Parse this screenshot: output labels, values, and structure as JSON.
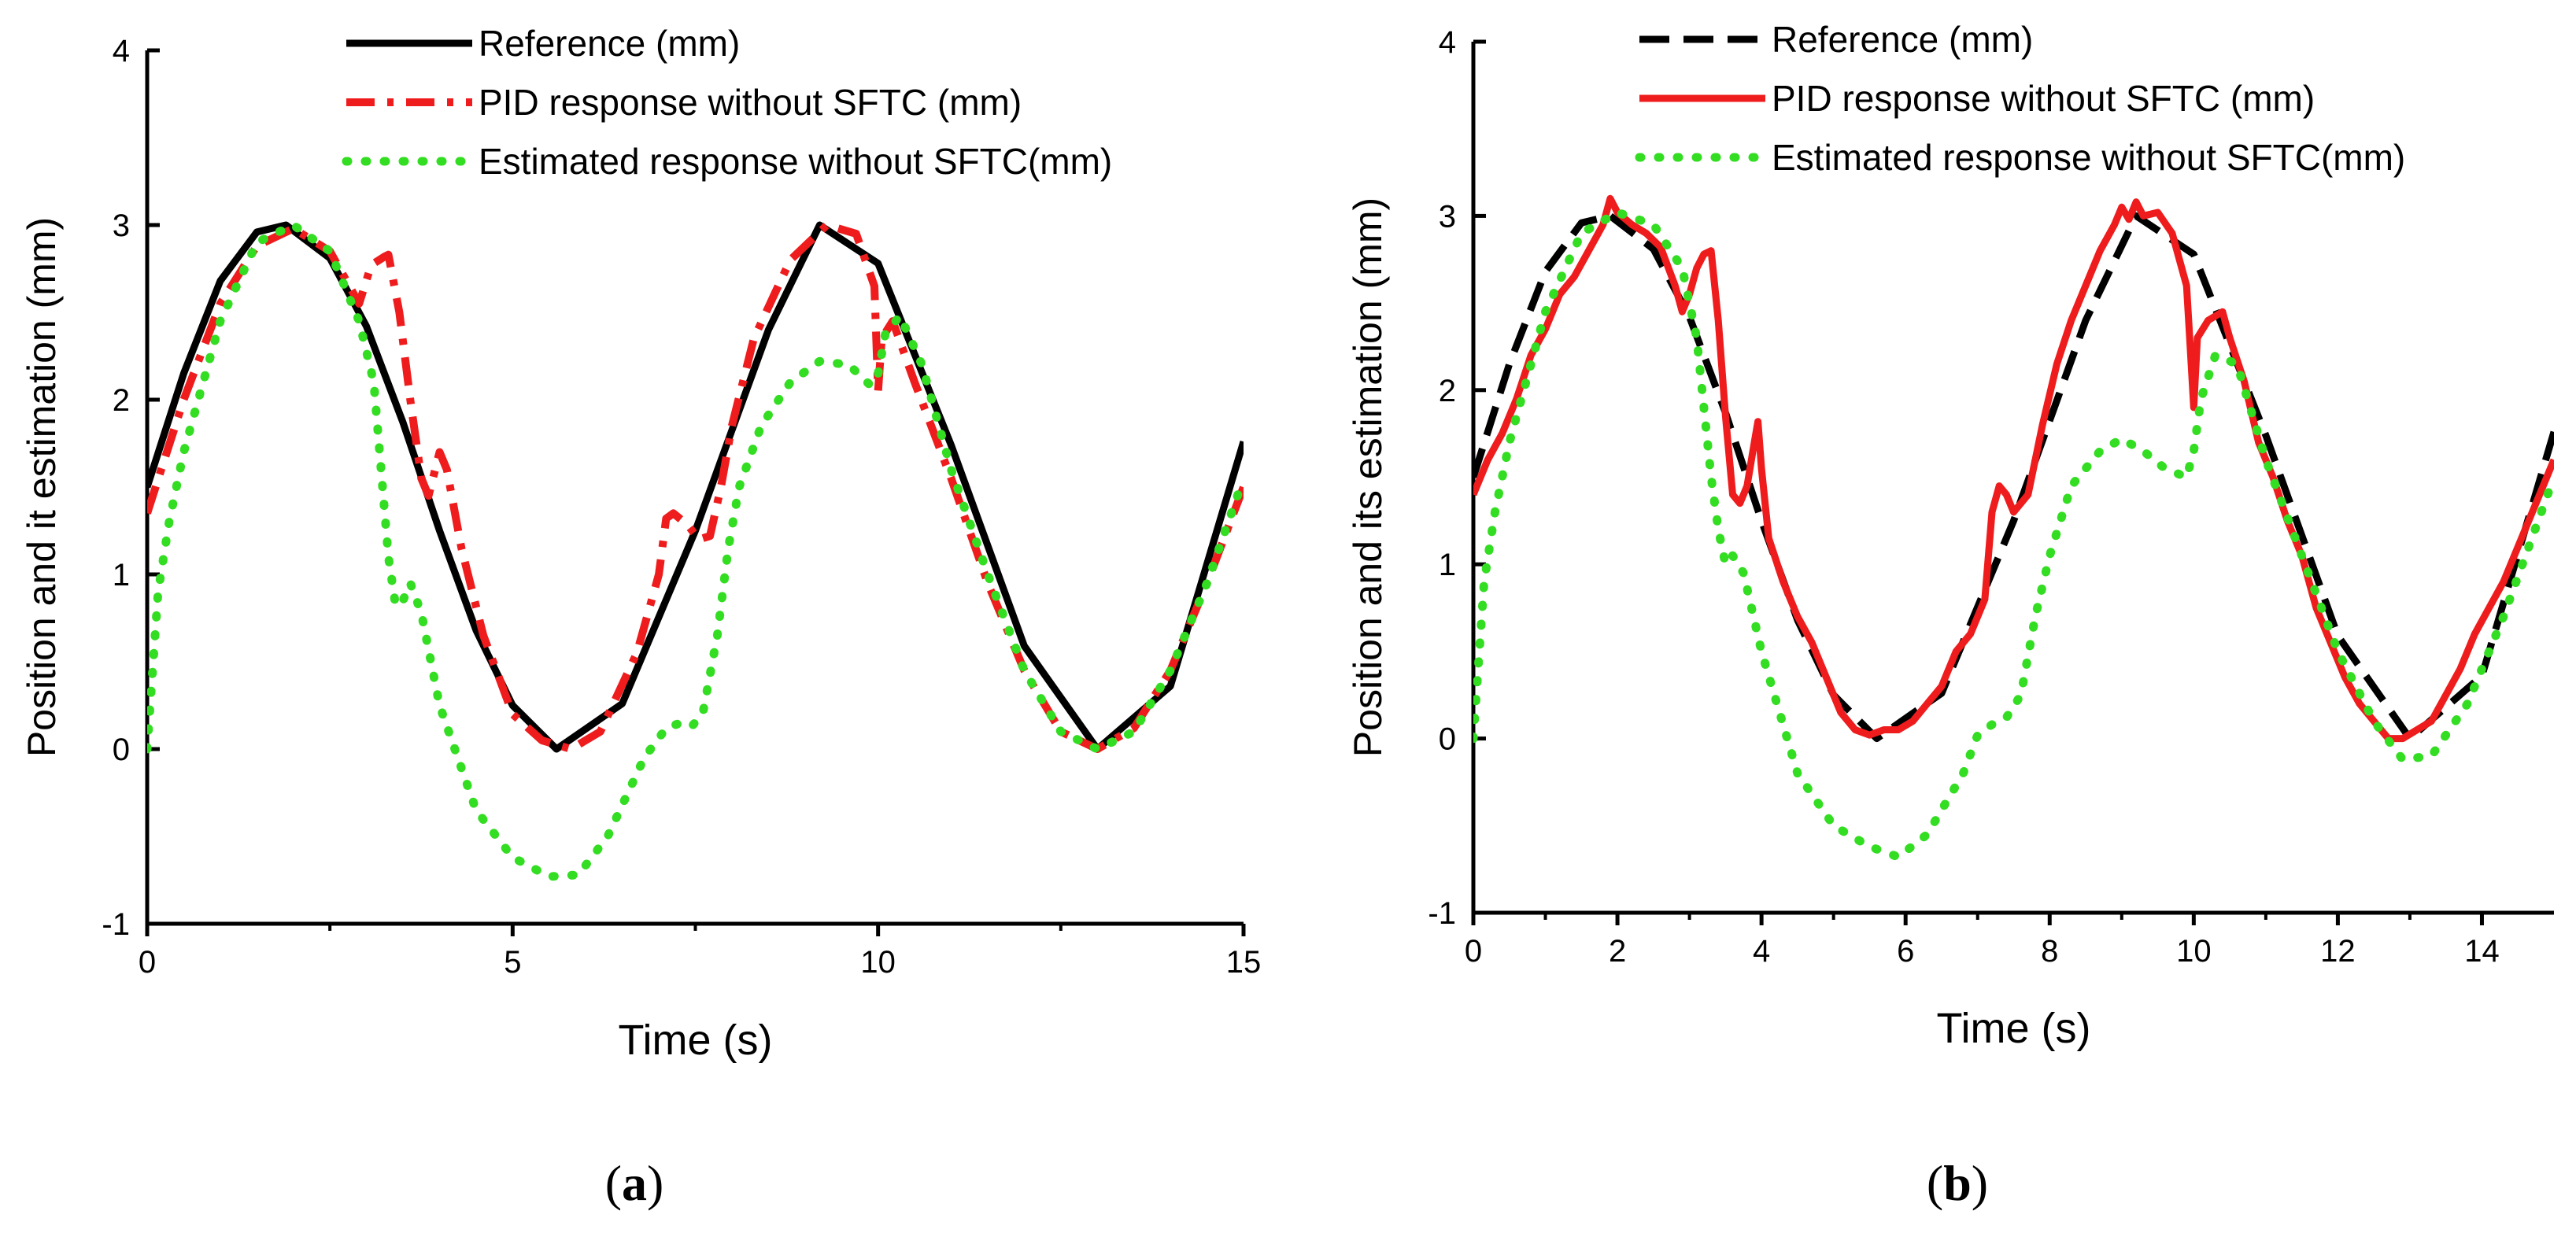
{
  "chart_data": [
    {
      "panel": "(a)",
      "panel_letter": "a",
      "type": "line",
      "xlabel": "Time (s)",
      "ylabel": "Position and it estimation (mm)",
      "xlim": [
        0,
        15
      ],
      "ylim": [
        -1,
        4
      ],
      "xticks": [
        0,
        5,
        10,
        15
      ],
      "xtick_labels": [
        "0",
        "5",
        "10",
        "15"
      ],
      "yticks": [
        -1,
        0,
        1,
        2,
        3,
        4
      ],
      "ytick_labels": [
        "-1",
        "0",
        "1",
        "2",
        "3",
        "4"
      ],
      "legend_position": "top",
      "series": [
        {
          "name": "Reference (mm)",
          "style": "solid",
          "color": "#000000",
          "x": [
            0,
            0.5,
            1,
            1.5,
            1.9,
            2.5,
            3,
            3.5,
            4,
            4.5,
            5,
            5.6,
            6.5,
            7.5,
            8.5,
            9.2,
            10,
            11,
            12,
            13,
            14,
            15
          ],
          "y": [
            1.5,
            2.15,
            2.68,
            2.96,
            3.0,
            2.81,
            2.42,
            1.87,
            1.25,
            0.68,
            0.25,
            0.0,
            0.26,
            1.25,
            2.4,
            3.0,
            2.78,
            1.74,
            0.59,
            0.0,
            0.36,
            1.76
          ]
        },
        {
          "name": "PID response without SFTC (mm)",
          "style": "dashdot",
          "color": "#ee1c1c",
          "x": [
            0,
            0.5,
            1,
            1.5,
            2,
            2.5,
            2.9,
            3.05,
            3.1,
            3.25,
            3.3,
            3.45,
            3.6,
            3.75,
            3.85,
            4.0,
            4.1,
            4.3,
            4.6,
            5,
            5.4,
            5.8,
            6.2,
            6.7,
            7.0,
            7.1,
            7.2,
            7.4,
            7.55,
            7.7,
            7.85,
            8.0,
            8.3,
            8.8,
            9.3,
            9.7,
            9.95,
            10.0,
            10.05,
            10.2,
            10.5,
            11,
            11.5,
            12,
            12.5,
            13,
            13.5,
            14,
            14.5,
            15
          ],
          "y": [
            1.35,
            2.0,
            2.55,
            2.88,
            2.98,
            2.85,
            2.55,
            2.75,
            2.78,
            2.82,
            2.83,
            2.5,
            2.0,
            1.55,
            1.45,
            1.7,
            1.6,
            1.15,
            0.65,
            0.2,
            0.05,
            0.0,
            0.1,
            0.55,
            1.0,
            1.32,
            1.35,
            1.28,
            1.2,
            1.22,
            1.5,
            1.85,
            2.35,
            2.8,
            3.0,
            2.95,
            2.65,
            2.05,
            2.35,
            2.45,
            2.1,
            1.55,
            0.95,
            0.45,
            0.1,
            0.0,
            0.12,
            0.45,
            0.95,
            1.5
          ]
        },
        {
          "name": "Estimated response without SFTC(mm)",
          "style": "dotted",
          "color": "#33dd22",
          "x": [
            0,
            0.05,
            0.15,
            0.3,
            0.5,
            1,
            1.5,
            2,
            2.5,
            2.9,
            3.1,
            3.2,
            3.3,
            3.4,
            3.5,
            3.6,
            3.75,
            4,
            4.5,
            5,
            5.5,
            5.9,
            6.3,
            6.8,
            7.1,
            7.3,
            7.45,
            7.6,
            7.8,
            7.95,
            8.1,
            8.4,
            8.8,
            9.2,
            9.6,
            9.9,
            10.0,
            10.1,
            10.3,
            10.6,
            11,
            11.5,
            12,
            12.5,
            13,
            13.5,
            14,
            14.5,
            15
          ],
          "y": [
            0.0,
            0.3,
            0.9,
            1.3,
            1.7,
            2.45,
            2.9,
            3.0,
            2.85,
            2.45,
            2.1,
            1.6,
            1.1,
            0.82,
            0.85,
            0.95,
            0.78,
            0.25,
            -0.35,
            -0.62,
            -0.73,
            -0.72,
            -0.5,
            -0.05,
            0.12,
            0.15,
            0.13,
            0.2,
            0.65,
            1.15,
            1.5,
            1.85,
            2.1,
            2.22,
            2.2,
            2.08,
            2.15,
            2.38,
            2.48,
            2.2,
            1.6,
            1.0,
            0.45,
            0.1,
            0.0,
            0.1,
            0.45,
            0.95,
            1.55
          ]
        }
      ]
    },
    {
      "panel": "(b)",
      "panel_letter": "b",
      "type": "line",
      "xlabel": "Time (s)",
      "ylabel": "Position and its estimation (mm)",
      "xlim": [
        0,
        15
      ],
      "ylim": [
        -1,
        4
      ],
      "xticks": [
        0,
        2,
        4,
        6,
        8,
        10,
        12,
        14
      ],
      "xtick_labels": [
        "0",
        "2",
        "4",
        "6",
        "8",
        "10",
        "12",
        "14"
      ],
      "yticks": [
        -1,
        0,
        1,
        2,
        3,
        4
      ],
      "ytick_labels": [
        "-1",
        "0",
        "1",
        "2",
        "3",
        "4"
      ],
      "legend_position": "top",
      "series": [
        {
          "name": "Reference (mm)",
          "style": "dashed",
          "color": "#000000",
          "x": [
            0,
            0.5,
            1,
            1.5,
            1.9,
            2.5,
            3,
            3.5,
            4,
            4.5,
            5,
            5.6,
            6.5,
            7.5,
            8.5,
            9.2,
            10,
            11,
            12,
            13,
            14,
            15
          ],
          "y": [
            1.5,
            2.15,
            2.68,
            2.96,
            3.0,
            2.81,
            2.42,
            1.87,
            1.25,
            0.68,
            0.25,
            0.0,
            0.26,
            1.25,
            2.4,
            3.0,
            2.78,
            1.74,
            0.59,
            0.0,
            0.36,
            1.76
          ]
        },
        {
          "name": "PID response without SFTC (mm)",
          "style": "solid",
          "color": "#ee1c1c",
          "x": [
            0,
            0.2,
            0.4,
            0.6,
            0.8,
            1.0,
            1.2,
            1.4,
            1.6,
            1.8,
            1.9,
            2.0,
            2.2,
            2.4,
            2.6,
            2.8,
            2.9,
            3.0,
            3.1,
            3.2,
            3.3,
            3.4,
            3.5,
            3.6,
            3.7,
            3.8,
            3.9,
            3.95,
            4.0,
            4.1,
            4.3,
            4.5,
            4.7,
            4.9,
            5.1,
            5.3,
            5.5,
            5.7,
            5.9,
            6.1,
            6.3,
            6.5,
            6.7,
            6.9,
            7.1,
            7.2,
            7.3,
            7.4,
            7.5,
            7.7,
            7.9,
            8.1,
            8.3,
            8.5,
            8.7,
            8.9,
            9.0,
            9.1,
            9.2,
            9.3,
            9.5,
            9.7,
            9.9,
            9.95,
            10.0,
            10.05,
            10.2,
            10.4,
            10.5,
            10.7,
            10.9,
            11.1,
            11.3,
            11.5,
            11.7,
            11.9,
            12.1,
            12.3,
            12.5,
            12.7,
            12.9,
            13.1,
            13.3,
            13.5,
            13.7,
            13.9,
            14.1,
            14.3,
            14.5,
            14.7,
            15.0
          ],
          "y": [
            1.4,
            1.6,
            1.75,
            1.95,
            2.2,
            2.35,
            2.55,
            2.65,
            2.8,
            2.95,
            3.1,
            3.02,
            2.95,
            2.9,
            2.82,
            2.6,
            2.45,
            2.55,
            2.7,
            2.78,
            2.8,
            2.4,
            1.85,
            1.4,
            1.35,
            1.45,
            1.7,
            1.82,
            1.55,
            1.15,
            0.9,
            0.7,
            0.55,
            0.35,
            0.15,
            0.05,
            0.02,
            0.05,
            0.05,
            0.1,
            0.2,
            0.3,
            0.5,
            0.6,
            0.8,
            1.3,
            1.45,
            1.4,
            1.3,
            1.4,
            1.8,
            2.15,
            2.4,
            2.6,
            2.8,
            2.95,
            3.05,
            2.98,
            3.08,
            3.0,
            3.02,
            2.9,
            2.6,
            2.25,
            1.9,
            2.3,
            2.4,
            2.45,
            2.3,
            2.05,
            1.7,
            1.5,
            1.25,
            1.05,
            0.75,
            0.55,
            0.35,
            0.2,
            0.1,
            0.0,
            0.0,
            0.05,
            0.1,
            0.25,
            0.4,
            0.6,
            0.75,
            0.9,
            1.1,
            1.3,
            1.6
          ]
        },
        {
          "name": "Estimated response without SFTC(mm)",
          "style": "dotted",
          "color": "#33dd22",
          "x": [
            0,
            0.05,
            0.15,
            0.3,
            0.5,
            1,
            1.5,
            2,
            2.5,
            2.9,
            3.1,
            3.2,
            3.3,
            3.4,
            3.5,
            3.6,
            3.75,
            4,
            4.5,
            5,
            5.5,
            5.9,
            6.3,
            6.8,
            7.0,
            7.2,
            7.4,
            7.6,
            7.8,
            8.0,
            8.3,
            8.7,
            9.0,
            9.3,
            9.6,
            9.9,
            10.0,
            10.1,
            10.3,
            10.6,
            11,
            11.5,
            12,
            12.5,
            12.9,
            13.3,
            13.8,
            14.3,
            15
          ],
          "y": [
            0.0,
            0.3,
            0.9,
            1.3,
            1.7,
            2.45,
            2.9,
            3.02,
            2.95,
            2.7,
            2.3,
            1.9,
            1.5,
            1.2,
            1.0,
            1.05,
            0.95,
            0.5,
            -0.2,
            -0.5,
            -0.62,
            -0.68,
            -0.55,
            -0.2,
            0.02,
            0.08,
            0.12,
            0.25,
            0.7,
            1.05,
            1.45,
            1.65,
            1.72,
            1.65,
            1.55,
            1.5,
            1.65,
            1.95,
            2.2,
            2.15,
            1.6,
            1.05,
            0.5,
            0.1,
            -0.12,
            -0.1,
            0.2,
            0.7,
            1.5
          ]
        }
      ]
    }
  ]
}
